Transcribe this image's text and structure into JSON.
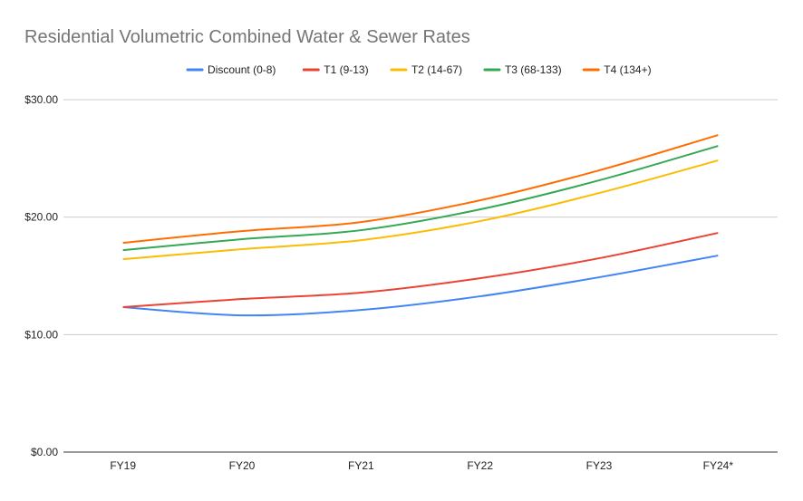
{
  "chart_data": {
    "type": "line",
    "title": "Residential Volumetric Combined Water & Sewer Rates",
    "xlabel": "",
    "ylabel": "",
    "categories": [
      "FY19",
      "FY20",
      "FY21",
      "FY22",
      "FY23",
      "FY24*"
    ],
    "ylim": [
      0,
      30
    ],
    "yticks": [
      0,
      10,
      20,
      30
    ],
    "ytick_labels": [
      "$0.00",
      "$10.00",
      "$20.00",
      "$30.00"
    ],
    "grid": true,
    "legend_position": "top",
    "series": [
      {
        "name": "Discount (0-8)",
        "color": "#4285f4",
        "values": [
          12.34,
          11.64,
          12.1,
          13.26,
          14.88,
          16.73
        ]
      },
      {
        "name": "T1 (9-13)",
        "color": "#ea4335",
        "values": [
          12.34,
          13.03,
          13.57,
          14.8,
          16.5,
          18.66
        ]
      },
      {
        "name": "T2 (14-67)",
        "color": "#fbbc04",
        "values": [
          16.42,
          17.27,
          18.04,
          19.66,
          22.05,
          24.83
        ]
      },
      {
        "name": "T3 (68-133)",
        "color": "#34a853",
        "values": [
          17.19,
          18.12,
          18.89,
          20.66,
          23.13,
          26.06
        ]
      },
      {
        "name": "T4 (134+)",
        "color": "#ff6d01",
        "values": [
          17.81,
          18.81,
          19.58,
          21.43,
          23.98,
          26.99
        ]
      }
    ]
  }
}
